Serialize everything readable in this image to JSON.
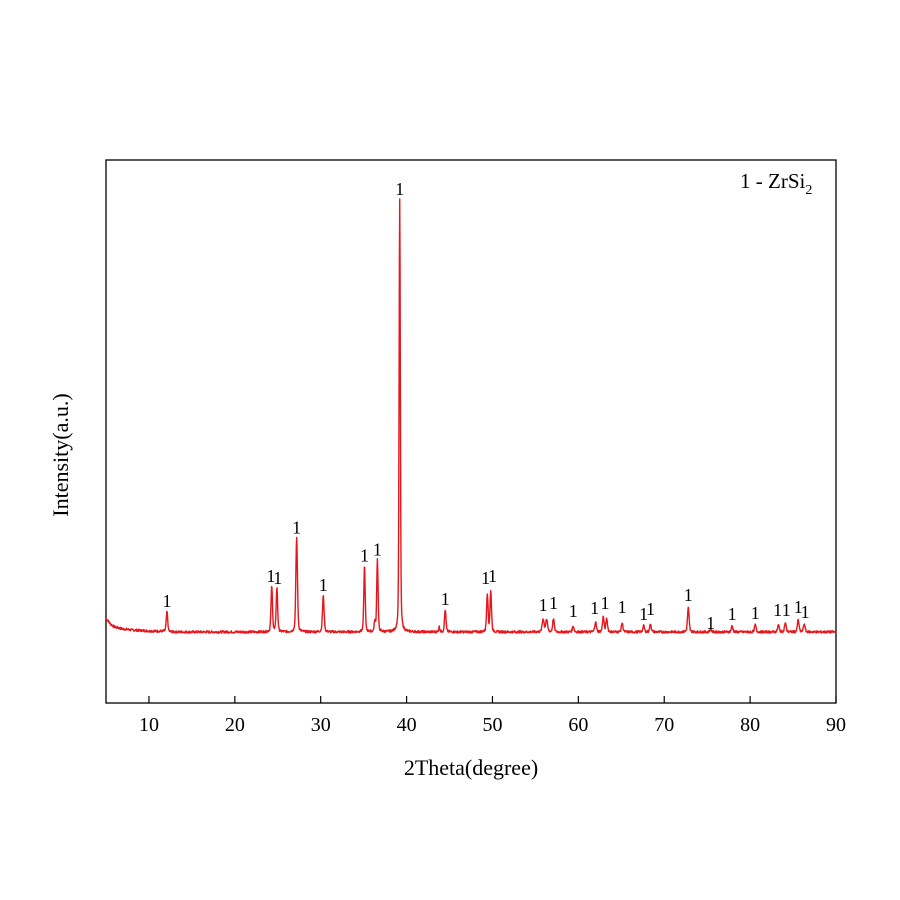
{
  "chart_data": {
    "type": "line",
    "title": "",
    "xlabel": "2Theta(degree)",
    "ylabel": "Intensity(a.u.)",
    "xlim": [
      5,
      90
    ],
    "xticks": [
      10,
      20,
      30,
      40,
      50,
      60,
      70,
      80,
      90
    ],
    "yticks_shown": false,
    "grid": false,
    "legend": {
      "placement": "top-right",
      "prefix": "1 - ZrSi",
      "subscript": "2"
    },
    "colors": {
      "series": "#e8151b",
      "axes": "#000000"
    },
    "series": [
      {
        "baseline": 4,
        "leading_tail": [
          [
            5.0,
            18
          ],
          [
            5.5,
            12
          ],
          [
            6.0,
            9
          ],
          [
            7.0,
            7
          ],
          [
            8.0,
            6
          ],
          [
            10.0,
            5
          ],
          [
            12.0,
            4.5
          ]
        ],
        "peaks": [
          {
            "x": 12.1,
            "y": 20,
            "w": 0.12
          },
          {
            "x": 24.3,
            "y": 45,
            "w": 0.12
          },
          {
            "x": 24.9,
            "y": 44,
            "w": 0.12
          },
          {
            "x": 27.2,
            "y": 94,
            "w": 0.13
          },
          {
            "x": 30.3,
            "y": 36,
            "w": 0.13
          },
          {
            "x": 35.1,
            "y": 66,
            "w": 0.11
          },
          {
            "x": 36.3,
            "y": 10,
            "w": 0.1
          },
          {
            "x": 36.6,
            "y": 72,
            "w": 0.11
          },
          {
            "x": 39.2,
            "y": 430,
            "w": 0.1
          },
          {
            "x": 43.8,
            "y": 5,
            "w": 0.1
          },
          {
            "x": 44.5,
            "y": 22,
            "w": 0.12
          },
          {
            "x": 49.4,
            "y": 38,
            "w": 0.12
          },
          {
            "x": 49.8,
            "y": 40,
            "w": 0.12
          },
          {
            "x": 55.9,
            "y": 13,
            "w": 0.15
          },
          {
            "x": 56.3,
            "y": 12,
            "w": 0.15
          },
          {
            "x": 57.1,
            "y": 13,
            "w": 0.13
          },
          {
            "x": 59.4,
            "y": 6,
            "w": 0.13
          },
          {
            "x": 62.0,
            "y": 10,
            "w": 0.13
          },
          {
            "x": 62.9,
            "y": 15,
            "w": 0.13
          },
          {
            "x": 63.3,
            "y": 13,
            "w": 0.13
          },
          {
            "x": 65.1,
            "y": 9,
            "w": 0.13
          },
          {
            "x": 67.6,
            "y": 6,
            "w": 0.13
          },
          {
            "x": 68.4,
            "y": 8,
            "w": 0.13
          },
          {
            "x": 72.8,
            "y": 24,
            "w": 0.13
          },
          {
            "x": 75.4,
            "y": 3,
            "w": 0.13
          },
          {
            "x": 77.9,
            "y": 6,
            "w": 0.13
          },
          {
            "x": 80.6,
            "y": 7,
            "w": 0.13
          },
          {
            "x": 83.3,
            "y": 7,
            "w": 0.13
          },
          {
            "x": 84.1,
            "y": 9,
            "w": 0.13
          },
          {
            "x": 85.6,
            "y": 12,
            "w": 0.13
          },
          {
            "x": 86.3,
            "y": 8,
            "w": 0.13
          }
        ],
        "noise": 1.2
      }
    ],
    "ymax": 460,
    "peak_labels": [
      {
        "x": 12.1,
        "y": 27,
        "text": "1"
      },
      {
        "x": 24.2,
        "y": 52,
        "text": "1"
      },
      {
        "x": 25.0,
        "y": 50,
        "text": "1"
      },
      {
        "x": 27.2,
        "y": 100,
        "text": "1"
      },
      {
        "x": 30.3,
        "y": 43,
        "text": "1"
      },
      {
        "x": 35.1,
        "y": 72,
        "text": "1"
      },
      {
        "x": 36.6,
        "y": 78,
        "text": "1"
      },
      {
        "x": 39.2,
        "y": 437,
        "text": "1"
      },
      {
        "x": 44.5,
        "y": 29,
        "text": "1"
      },
      {
        "x": 49.2,
        "y": 50,
        "text": "1"
      },
      {
        "x": 50.0,
        "y": 52,
        "text": "1"
      },
      {
        "x": 55.9,
        "y": 23,
        "text": "1"
      },
      {
        "x": 57.1,
        "y": 25,
        "text": "1"
      },
      {
        "x": 59.4,
        "y": 17,
        "text": "1"
      },
      {
        "x": 61.9,
        "y": 20,
        "text": "1"
      },
      {
        "x": 63.1,
        "y": 25,
        "text": "1"
      },
      {
        "x": 65.1,
        "y": 21,
        "text": "1"
      },
      {
        "x": 67.6,
        "y": 14,
        "text": "1"
      },
      {
        "x": 68.4,
        "y": 19,
        "text": "1"
      },
      {
        "x": 72.8,
        "y": 33,
        "text": "1"
      },
      {
        "x": 75.4,
        "y": 5,
        "text": "1"
      },
      {
        "x": 77.9,
        "y": 14,
        "text": "1"
      },
      {
        "x": 80.6,
        "y": 15,
        "text": "1"
      },
      {
        "x": 83.2,
        "y": 18,
        "text": "1"
      },
      {
        "x": 84.2,
        "y": 18,
        "text": "1"
      },
      {
        "x": 85.6,
        "y": 21,
        "text": "1"
      },
      {
        "x": 86.4,
        "y": 16,
        "text": "1"
      }
    ]
  }
}
